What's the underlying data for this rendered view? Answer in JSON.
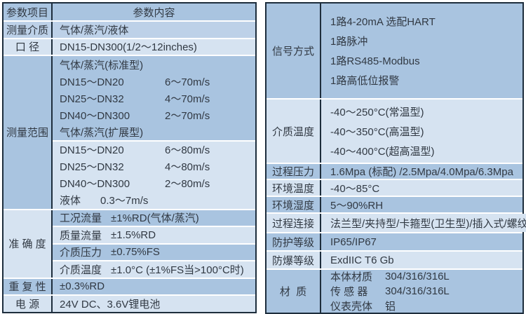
{
  "colors": {
    "border": "#1d2d3c",
    "band_dark": "#a9c4e0",
    "band_mid": "#bdd1e8",
    "band_light": "#d6e3f1",
    "separator": "#ffffff",
    "text": "#313943"
  },
  "left": {
    "header": {
      "param": "参数项目",
      "content": "参数内容"
    },
    "medium": {
      "label": "测量介质",
      "value": "气体/蒸汽/液体"
    },
    "diameter": {
      "label": "口 径",
      "value": "DN15-DN300(1/2～12inches)"
    },
    "range": {
      "label": "测量范围",
      "std_title": "气体/蒸汽(标准型)",
      "std": [
        {
          "name": "DN15～DN20",
          "value": "6～70m/s"
        },
        {
          "name": "DN25～DN32",
          "value": "4～70m/s"
        },
        {
          "name": "DN40～DN300",
          "value": "2～70m/s"
        }
      ],
      "ext_title": "气体/蒸汽(扩展型)",
      "ext": [
        {
          "name": "DN15～DN20",
          "value": "6～80m/s"
        },
        {
          "name": "DN25～DN32",
          "value": "4～80m/s"
        },
        {
          "name": "DN40～DN300",
          "value": "2～80m/s"
        },
        {
          "name": "液体",
          "value": "0.3～7m/s"
        }
      ]
    },
    "accuracy": {
      "label": "准 确 度",
      "rows": [
        {
          "name": "工况流量",
          "value": "±1%RD(气体/蒸汽)"
        },
        {
          "name": "质量流量",
          "value": "±1.5%RD"
        },
        {
          "name": "介质压力",
          "value": "±0.75%FS"
        },
        {
          "name": "介质温度",
          "value": "±1.0°C (±1%FS当>100°C时)"
        }
      ]
    },
    "repeatability": {
      "label": "重 复 性",
      "value": "±0.3%RD"
    },
    "power": {
      "label": "电 源",
      "value": "24V DC、3.6V锂电池"
    }
  },
  "right": {
    "signal": {
      "label": "信号方式",
      "lines": [
        "1路4-20mA 选配HART",
        "1路脉冲",
        "1路RS485-Modbus",
        "1路高低位报警"
      ]
    },
    "medium_temp": {
      "label": "介质温度",
      "lines": [
        "-40～250°C(常温型)",
        "-40～350°C(高温型)",
        "-40～400°C(超高温型)"
      ]
    },
    "pressure": {
      "label": "过程压力",
      "value": "1.6Mpa (标配) /2.5Mpa/4.0Mpa/6.3Mpa"
    },
    "ambient_temp": {
      "label": "环境温度",
      "value": "-40～85°C"
    },
    "humidity": {
      "label": "环境湿度",
      "value": "5～90%RH"
    },
    "connection": {
      "label": "过程连接",
      "value": "法兰型/夹持型/卡箍型(卫生型)/插入式/螺纹型"
    },
    "protection": {
      "label": "防护等级",
      "value": "IP65/IP67"
    },
    "explosion": {
      "label": "防爆等级",
      "value": "ExdIIC T6 Gb"
    },
    "material": {
      "label": "材  质",
      "rows": [
        {
          "name": "本体材质",
          "value": "304/316/316L"
        },
        {
          "name": "传 感 器",
          "value": "304/316/316L"
        },
        {
          "name": "仪表壳体",
          "value": "铝"
        }
      ]
    }
  }
}
